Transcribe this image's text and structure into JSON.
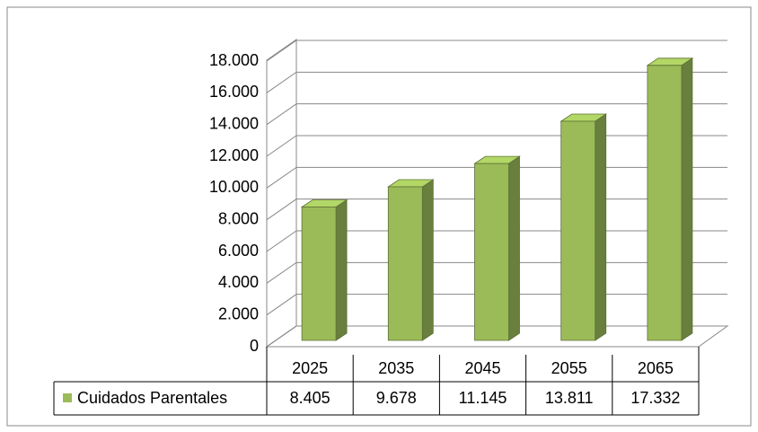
{
  "chart_data": {
    "type": "bar",
    "categories": [
      "2025",
      "2035",
      "2045",
      "2055",
      "2065"
    ],
    "series": [
      {
        "name": "Cuidados Parentales",
        "color": "#9bbb59",
        "values": [
          8405,
          9678,
          11145,
          13811,
          17332
        ],
        "value_labels": [
          "8.405",
          "9.678",
          "11.145",
          "13.811",
          "17.332"
        ]
      }
    ],
    "ylim": [
      0,
      18000
    ],
    "yticks": [
      0,
      {
        "value": 2000,
        "label": "2.000"
      },
      {
        "value": 4000,
        "label": "4.000"
      },
      {
        "value": 6000,
        "label": "6.000"
      },
      {
        "value": 8000,
        "label": "8.000"
      },
      {
        "value": 10000,
        "label": "10.000"
      },
      {
        "value": 12000,
        "label": "12.000"
      },
      {
        "value": 14000,
        "label": "14.000"
      },
      {
        "value": 16000,
        "label": "16.000"
      },
      {
        "value": 18000,
        "label": "18.000"
      }
    ],
    "grid": true,
    "data_table": true
  }
}
